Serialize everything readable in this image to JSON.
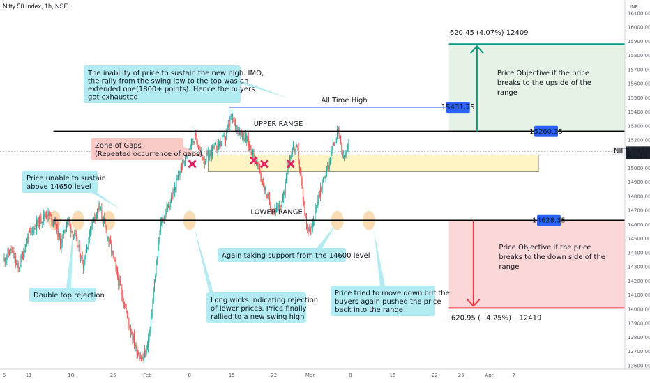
{
  "header": {
    "title": "Nifty 50 Index, 1h, NSE"
  },
  "colors": {
    "up": "#26a69a",
    "down": "#ef5350",
    "callout_fill": "#b2ebf2",
    "callout_edge": "#9be0ea",
    "red_note_fill": "#f8c9c5",
    "gap_zone": "#fff5c4",
    "green_box": "#e6f2e6",
    "green_line": "#089981",
    "red_box": "#fbd7d7",
    "red_line": "#f23645",
    "blue_label": "#2962ff",
    "marker": "#e91e63",
    "circle": "#f6c98a"
  },
  "chart_data": {
    "type": "candlestick",
    "title": "Nifty 50 Index, 1h, NSE",
    "y_axis": {
      "unit": "INR",
      "ylim": [
        13580,
        16130
      ],
      "ticks": [
        13600,
        13700,
        13800,
        13900,
        14000,
        14100,
        14200,
        14300,
        14400,
        14500,
        14600,
        14700,
        14800,
        14900,
        15000,
        15100,
        15200,
        15300,
        15400,
        15500,
        15600,
        15700,
        15800,
        15900,
        16000,
        16100
      ],
      "tick_labels": [
        "13600.00",
        "13700.00",
        "13800.00",
        "13900.00",
        "14000.00",
        "14100.00",
        "14200.00",
        "14300.00",
        "14400.00",
        "14500.00",
        "14600.00",
        "14700.00",
        "14800.00",
        "14900.00",
        "15000.00",
        "15100.00",
        "15200.00",
        "15300.00",
        "15400.00",
        "15500.00",
        "15600.00",
        "15700.00",
        "15800.00",
        "15900.00",
        "16000.00",
        "16100.00"
      ]
    },
    "x_axis": {
      "ticks": [
        {
          "bar": 0,
          "label": "6"
        },
        {
          "bar": 28,
          "label": "11"
        },
        {
          "bar": 76,
          "label": "18"
        },
        {
          "bar": 124,
          "label": "25"
        },
        {
          "bar": 163,
          "label": "Feb"
        },
        {
          "bar": 211,
          "label": "8"
        },
        {
          "bar": 259,
          "label": "15"
        },
        {
          "bar": 307,
          "label": "22"
        },
        {
          "bar": 348,
          "label": "Mar"
        },
        {
          "bar": 394,
          "label": "8"
        },
        {
          "bar": 442,
          "label": "15"
        },
        {
          "bar": 490,
          "label": "22"
        },
        {
          "bar": 520,
          "label": "25"
        },
        {
          "bar": 552,
          "label": "Apr"
        },
        {
          "bar": 580,
          "label": "7"
        }
      ]
    },
    "series_path": [
      [
        0,
        14350
      ],
      [
        8,
        14420
      ],
      [
        16,
        14280
      ],
      [
        26,
        14500
      ],
      [
        38,
        14610
      ],
      [
        48,
        14680
      ],
      [
        58,
        14620
      ],
      [
        64,
        14460
      ],
      [
        72,
        14640
      ],
      [
        82,
        14480
      ],
      [
        90,
        14320
      ],
      [
        100,
        14620
      ],
      [
        108,
        14730
      ],
      [
        114,
        14600
      ],
      [
        122,
        14420
      ],
      [
        130,
        14200
      ],
      [
        136,
        14060
      ],
      [
        142,
        13900
      ],
      [
        150,
        13720
      ],
      [
        158,
        13640
      ],
      [
        162,
        13720
      ],
      [
        166,
        13860
      ],
      [
        172,
        14250
      ],
      [
        178,
        14600
      ],
      [
        186,
        14720
      ],
      [
        194,
        14850
      ],
      [
        200,
        14980
      ],
      [
        206,
        15080
      ],
      [
        212,
        15180
      ],
      [
        218,
        15230
      ],
      [
        222,
        15120
      ],
      [
        228,
        15060
      ],
      [
        236,
        15120
      ],
      [
        244,
        15170
      ],
      [
        252,
        15220
      ],
      [
        258,
        15360
      ],
      [
        264,
        15300
      ],
      [
        270,
        15250
      ],
      [
        276,
        15200
      ],
      [
        282,
        15120
      ],
      [
        290,
        14990
      ],
      [
        296,
        14860
      ],
      [
        304,
        14720
      ],
      [
        312,
        14700
      ],
      [
        318,
        14800
      ],
      [
        322,
        15000
      ],
      [
        328,
        15140
      ],
      [
        334,
        15120
      ],
      [
        338,
        14900
      ],
      [
        342,
        14680
      ],
      [
        346,
        14560
      ],
      [
        350,
        14560
      ],
      [
        356,
        14760
      ],
      [
        362,
        14900
      ],
      [
        368,
        15000
      ],
      [
        376,
        15200
      ],
      [
        380,
        15260
      ],
      [
        386,
        15060
      ],
      [
        392,
        15150
      ]
    ],
    "levels": [
      {
        "name": "UPPER RANGE",
        "value": 15260.35,
        "label": "15260.35"
      },
      {
        "name": "LOWER RANGE",
        "value": 14628.35,
        "label": "14628.35"
      },
      {
        "name": "All Time High",
        "value": 15431.75,
        "label": "15431.75"
      },
      {
        "name": "NIFTY",
        "value": 15119.25,
        "label": "15119.25",
        "sublabel": "44:18"
      }
    ],
    "gap_zone": {
      "low": 14975,
      "high": 15095
    },
    "projections": [
      {
        "from": 15260.35,
        "to": 15880.8,
        "label": "620.45 (4.07%) 12409"
      },
      {
        "from": 14628.35,
        "to": 14007.4,
        "label": "−620.95 (−4.25%) −12419"
      }
    ],
    "gap_markers_bars": [
      214,
      284,
      296,
      326
    ]
  },
  "annotations": {
    "top_callout": [
      "The inability of price to sustain the new high. IMO,",
      "the rally from the swing low to the top was an",
      "extended one(1800+ points). Hence the buyers",
      "got exhausted."
    ],
    "gap_note": [
      "Zone of Gaps",
      "(Repeated occurrence of gaps)"
    ],
    "price_unable": [
      "Price unable to sustain",
      "above 14650 level"
    ],
    "double_top": "Double top rejection",
    "support": "Again taking support from the 14600 level",
    "long_wicks": [
      "Long wicks indicating rejection",
      "of lower prices. Price finally",
      "rallied to a new swing high"
    ],
    "price_tried": [
      "Price tried to move down but the",
      "buyers again pushed the price",
      "back into the range"
    ],
    "upper_range": "UPPER RANGE",
    "lower_range": "LOWER RANGE",
    "all_time_high": "All Time High",
    "objective_up": [
      "Price Objective if the price",
      "breaks to the upside of the",
      "range"
    ],
    "objective_down": [
      "Price Objective if the price",
      "breaks to the down side of the",
      "range"
    ]
  }
}
